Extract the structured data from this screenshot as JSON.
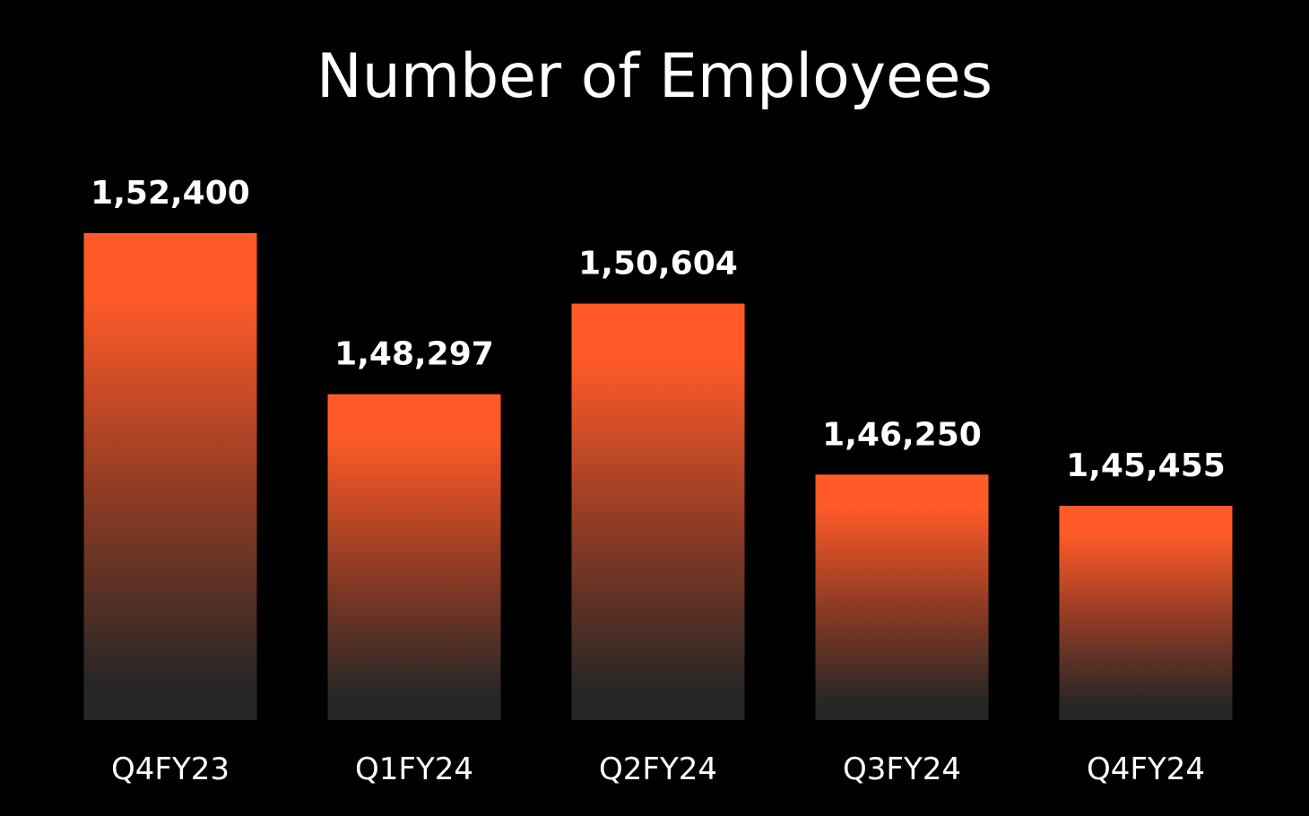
{
  "chart_data": {
    "type": "bar",
    "title": "Number of Employees",
    "categories": [
      "Q4FY23",
      "Q1FY24",
      "Q2FY24",
      "Q3FY24",
      "Q4FY24"
    ],
    "values": [
      152400,
      148297,
      150604,
      146250,
      145455
    ],
    "data_labels": [
      "1,52,400",
      "1,48,297",
      "1,50,604",
      "1,46,250",
      "1,45,455"
    ],
    "xlabel": "",
    "ylabel": "",
    "ylim": [
      140000,
      155000
    ],
    "grid": false,
    "legend": "none",
    "colors": {
      "bar_top": "#FF5A28",
      "bar_bottom": "#262626",
      "background": "#000000",
      "text": "#FFFFFF"
    }
  }
}
